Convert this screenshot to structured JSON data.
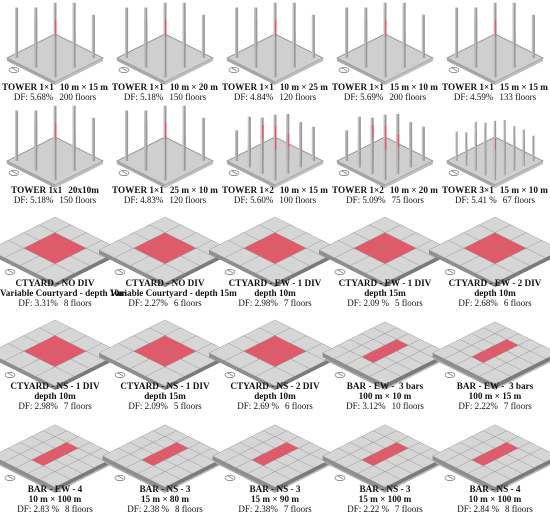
{
  "colors": {
    "slab": "#cfcfcf",
    "slab_edge": "#8a8a8a",
    "tower": "#9a9a9a",
    "red": "#e05a6a",
    "block": "#8e8e8e",
    "block_top": "#d6d6d6"
  },
  "rows": [
    [
      {
        "kind": "tower",
        "title": "TOWER 1×1",
        "dims": "10 m × 15 m",
        "df": "DF: 5.68%",
        "floors": "200 floors"
      },
      {
        "kind": "tower",
        "title": "TOWER 1×1",
        "dims": "10 m × 20 m",
        "df": "DF: 5.18%",
        "floors": "150 floors"
      },
      {
        "kind": "tower",
        "title": "TOWER 1×1",
        "dims": "10 m × 25 m",
        "df": "DF: 4.84%",
        "floors": "120 floors"
      },
      {
        "kind": "tower",
        "title": "TOWER 1×1",
        "dims": "15 m × 10 m",
        "df": "DF: 5.69%",
        "floors": "200 floors"
      },
      {
        "kind": "tower",
        "title": "TOWER 1×1",
        "dims": "15 m × 15 m",
        "df": "DF: 4.59%",
        "floors": "133 floors"
      }
    ],
    [
      {
        "kind": "tower",
        "title": "TOWER 1x1",
        "dims": "20x10m",
        "df": "DF: 5.18%",
        "floors": "150 floors"
      },
      {
        "kind": "tower",
        "title": "TOWER 1×1",
        "dims": "25 m × 10 m",
        "df": "DF: 4.83%",
        "floors": "120 floors"
      },
      {
        "kind": "tower2",
        "title": "TOWER 1×2",
        "dims": "10 m × 15 m",
        "df": "DF: 5.60%",
        "floors": "100 floors"
      },
      {
        "kind": "tower2",
        "title": "TOWER 1×2",
        "dims": "10 m × 20 m",
        "df": "DF: 5.09%",
        "floors": "75 floors"
      },
      {
        "kind": "tower3",
        "title": "TOWER 3×1",
        "dims": "15 m × 10 m",
        "df": "DF: 5.41 %",
        "floors": "67 floors"
      }
    ],
    [
      {
        "kind": "court",
        "title": "CTYARD - NO DIV",
        "sub": "Variable Courtyard - depth 10m",
        "df": "DF: 3.31%",
        "floors": "8 floors"
      },
      {
        "kind": "court",
        "title": "CTYARD - NO DIV",
        "sub": "Variable Courtyard - depth 15m",
        "df": "DF: 2.27%",
        "floors": "6 floors"
      },
      {
        "kind": "court",
        "title": "CTYARD - EW - 1 DIV",
        "sub": "depth 10m",
        "df": "DF: 2.98%",
        "floors": "7 floors"
      },
      {
        "kind": "court",
        "title": "CTYARD - EW - 1 DIV",
        "sub": "depth 15m",
        "df": "DF: 2.09 %",
        "floors": "5 floors"
      },
      {
        "kind": "court",
        "title": "CTYARD - EW - 2 DIV",
        "sub": "depth 10m",
        "df": "DF: 2.68%",
        "floors": "6 floors"
      }
    ],
    [
      {
        "kind": "court",
        "title": "CTYARD - NS - 1 DIV",
        "sub": "depth 10m",
        "df": "DF: 2.98%",
        "floors": "7 floors"
      },
      {
        "kind": "court",
        "title": "CTYARD - NS - 1 DIV",
        "sub": "depth 15m",
        "df": "DF: 2.09%",
        "floors": "5 floors"
      },
      {
        "kind": "court",
        "title": "CTYARD - NS - 2 DIV",
        "sub": "depth 10m",
        "df": "DF: 2.69 %",
        "floors": "6 floors"
      },
      {
        "kind": "bar",
        "title": "BAR - EW -  3 bars",
        "sub": "100 m × 10 m",
        "df": "DF: 3.12%",
        "floors": "10 floors"
      },
      {
        "kind": "bar",
        "title": "BAR - EW -  3 bars",
        "sub": "100 m × 15 m",
        "df": "DF: 2.22%",
        "floors": "7 floors"
      }
    ],
    [
      {
        "kind": "bar",
        "title": "BAR - EW - 4",
        "sub": "10 m × 100 m",
        "df": "DF: 2.83 %",
        "floors": "8 floors"
      },
      {
        "kind": "bar",
        "title": "BAR - NS - 3",
        "sub": "15 m × 80 m",
        "df": "DF: 2.38 %",
        "floors": "8 floors"
      },
      {
        "kind": "bar",
        "title": "BAR - NS - 3",
        "sub": "15 m × 90 m",
        "df": "DF: 2.38%",
        "floors": "7 floors"
      },
      {
        "kind": "bar",
        "title": "BAR - NS - 3",
        "sub": "15 m × 100 m",
        "df": "DF: 2.22 %",
        "floors": "7 floors"
      },
      {
        "kind": "bar",
        "title": "BAR - NS - 4",
        "sub": "10 m × 100 m",
        "df": "DF: 2.84 %",
        "floors": "8 floors"
      }
    ]
  ]
}
